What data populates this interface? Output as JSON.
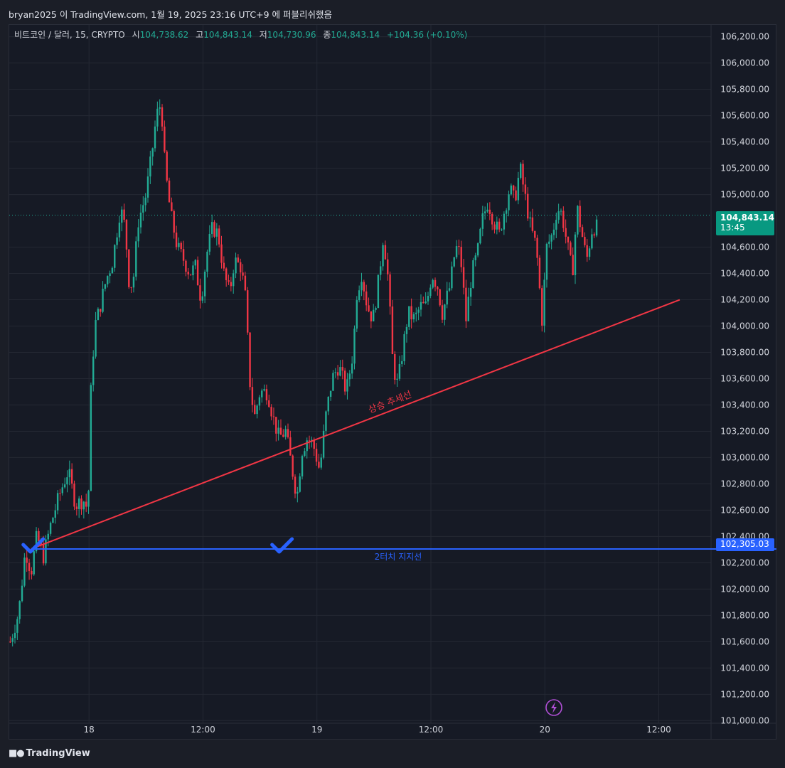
{
  "credit": "bryan2025 이 TradingView.com, 1월 19, 2025 23:16 UTC+9 에 퍼블리쉬했음",
  "legend": {
    "symbol": "비트코인 / 달러, 15, CRYPTO",
    "open_label": "시",
    "open": "104,738.62",
    "high_label": "고",
    "high": "104,843.14",
    "low_label": "저",
    "low": "104,730.96",
    "close_label": "종",
    "close": "104,843.14",
    "change": "+104.36 (+0.10%)"
  },
  "logo": "TradingView",
  "last_price": {
    "price": "104,843.14",
    "countdown": "13:45"
  },
  "support_price": "102,305.03",
  "colors": {
    "up": "#22ab94",
    "down": "#f23645",
    "trend": "#f23645",
    "support": "#2962ff",
    "background": "#161a25",
    "grid": "#242833"
  },
  "chart_data": {
    "type": "candlestick",
    "y_ticks": [
      "106,200.00",
      "106,000.00",
      "105,800.00",
      "105,600.00",
      "105,400.00",
      "105,200.00",
      "105,000.00",
      "104,600.00",
      "104,400.00",
      "104,200.00",
      "104,000.00",
      "103,800.00",
      "103,600.00",
      "103,400.00",
      "103,200.00",
      "103,000.00",
      "102,800.00",
      "102,600.00",
      "102,400.00",
      "102,200.00",
      "102,000.00",
      "101,800.00",
      "101,600.00",
      "101,400.00",
      "101,200.00",
      "101,000.00"
    ],
    "y_tick_values": [
      106200,
      106000,
      105800,
      105600,
      105400,
      105200,
      105000,
      104600,
      104400,
      104200,
      104000,
      103800,
      103600,
      103400,
      103200,
      103000,
      102800,
      102600,
      102400,
      102200,
      102000,
      101800,
      101600,
      101400,
      101200,
      101000
    ],
    "ylim": [
      100980,
      106290
    ],
    "x_ticks": [
      "18",
      "12:00",
      "19",
      "12:00",
      "20",
      "12:00"
    ],
    "x_tick_hours": [
      24,
      36,
      48,
      60,
      72,
      84
    ],
    "xlim_hours": [
      15.6,
      89.5
    ],
    "close_path": [
      [
        15.7,
        101600
      ],
      [
        16.6,
        101820
      ],
      [
        17.3,
        102300
      ],
      [
        17.9,
        102130
      ],
      [
        18.5,
        102400
      ],
      [
        19.2,
        102250
      ],
      [
        20.0,
        102500
      ],
      [
        20.9,
        102720
      ],
      [
        21.8,
        102900
      ],
      [
        22.6,
        102640
      ],
      [
        23.4,
        102680
      ],
      [
        23.9,
        102600
      ],
      [
        24.2,
        103500
      ],
      [
        24.6,
        104000
      ],
      [
        25.0,
        104100
      ],
      [
        25.8,
        104350
      ],
      [
        26.5,
        104500
      ],
      [
        27.3,
        104900
      ],
      [
        27.8,
        104750
      ],
      [
        28.2,
        104350
      ],
      [
        28.6,
        104300
      ],
      [
        29.2,
        104800
      ],
      [
        30.0,
        105000
      ],
      [
        30.6,
        105300
      ],
      [
        31.1,
        105600
      ],
      [
        31.6,
        105700
      ],
      [
        32.0,
        105200
      ],
      [
        32.6,
        104850
      ],
      [
        33.3,
        104600
      ],
      [
        34.0,
        104500
      ],
      [
        34.6,
        104400
      ],
      [
        35.2,
        104450
      ],
      [
        35.8,
        104200
      ],
      [
        36.4,
        104550
      ],
      [
        37.0,
        104750
      ],
      [
        37.6,
        104700
      ],
      [
        38.2,
        104400
      ],
      [
        38.8,
        104250
      ],
      [
        39.3,
        104500
      ],
      [
        40.0,
        104450
      ],
      [
        40.5,
        104200
      ],
      [
        40.9,
        103600
      ],
      [
        41.4,
        103300
      ],
      [
        42.0,
        103500
      ],
      [
        42.8,
        103500
      ],
      [
        43.4,
        103300
      ],
      [
        44.0,
        103150
      ],
      [
        44.7,
        103200
      ],
      [
        45.3,
        102950
      ],
      [
        45.9,
        102700
      ],
      [
        46.4,
        103050
      ],
      [
        47.0,
        103150
      ],
      [
        47.6,
        103100
      ],
      [
        48.3,
        102900
      ],
      [
        48.9,
        103300
      ],
      [
        49.6,
        103600
      ],
      [
        50.3,
        103700
      ],
      [
        51.1,
        103500
      ],
      [
        51.8,
        103800
      ],
      [
        52.2,
        104250
      ],
      [
        52.7,
        104400
      ],
      [
        53.3,
        104150
      ],
      [
        53.9,
        104050
      ],
      [
        54.5,
        104350
      ],
      [
        55.0,
        104700
      ],
      [
        55.5,
        104350
      ],
      [
        56.0,
        103700
      ],
      [
        56.5,
        103550
      ],
      [
        57.0,
        103800
      ],
      [
        57.6,
        104100
      ],
      [
        58.3,
        104050
      ],
      [
        58.9,
        104150
      ],
      [
        59.5,
        104150
      ],
      [
        60.1,
        104400
      ],
      [
        60.7,
        104300
      ],
      [
        61.2,
        104100
      ],
      [
        62.0,
        104300
      ],
      [
        62.6,
        104600
      ],
      [
        63.1,
        104550
      ],
      [
        63.7,
        104050
      ],
      [
        64.3,
        104400
      ],
      [
        64.9,
        104550
      ],
      [
        65.4,
        104800
      ],
      [
        66.0,
        104950
      ],
      [
        66.6,
        104800
      ],
      [
        67.2,
        104700
      ],
      [
        67.8,
        104900
      ],
      [
        68.3,
        105050
      ],
      [
        68.8,
        104950
      ],
      [
        69.4,
        105200
      ],
      [
        70.0,
        104950
      ],
      [
        70.5,
        104750
      ],
      [
        71.1,
        104600
      ],
      [
        71.7,
        104050
      ],
      [
        72.2,
        104600
      ],
      [
        72.8,
        104700
      ],
      [
        73.3,
        104900
      ],
      [
        73.8,
        104850
      ],
      [
        74.4,
        104600
      ],
      [
        74.9,
        104400
      ],
      [
        75.4,
        104900
      ],
      [
        75.9,
        104700
      ],
      [
        76.4,
        104500
      ],
      [
        77.0,
        104750
      ],
      [
        77.6,
        104750
      ]
    ],
    "trendline": {
      "name": "상승 추세선",
      "from": [
        17.9,
        102305
      ],
      "to": [
        86.2,
        104200
      ]
    },
    "support_line": {
      "name": "2터치 지지선",
      "value": 102305.03,
      "from_hours": 17.9,
      "to_hours": 89.5
    },
    "touch_marks_hours": [
      17.9,
      44.1
    ],
    "current_price": 104843.14
  }
}
